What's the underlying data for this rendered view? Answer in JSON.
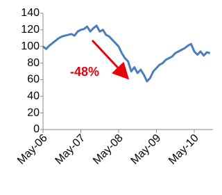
{
  "chart_data": {
    "type": "line",
    "categories": [
      "May-06",
      null,
      null,
      null,
      null,
      null,
      null,
      null,
      null,
      null,
      null,
      null,
      "May-07",
      null,
      null,
      null,
      null,
      null,
      null,
      null,
      null,
      null,
      null,
      null,
      "May-08",
      null,
      null,
      null,
      null,
      null,
      null,
      null,
      null,
      null,
      null,
      null,
      "May-09",
      null,
      null,
      null,
      null,
      null,
      null,
      null,
      null,
      null,
      null,
      null,
      "May-10",
      null,
      null,
      null,
      null,
      null
    ],
    "values": [
      100,
      97,
      101,
      104,
      107,
      110,
      112,
      113,
      114,
      115,
      113,
      118,
      120,
      121,
      124,
      118,
      122,
      125,
      118,
      120,
      114,
      112,
      108,
      104,
      100,
      92,
      86,
      82,
      70,
      75,
      68,
      72,
      66,
      58,
      62,
      70,
      74,
      78,
      80,
      84,
      86,
      88,
      92,
      94,
      96,
      98,
      101,
      103,
      94,
      90,
      94,
      89,
      93,
      92
    ],
    "color": "#4a7ebb",
    "ylim": [
      0,
      140
    ],
    "yticks": [
      0,
      20,
      40,
      60,
      80,
      100,
      120,
      140
    ],
    "grid": false,
    "annotation": {
      "text": "-48%",
      "color": "#e8000b"
    }
  }
}
